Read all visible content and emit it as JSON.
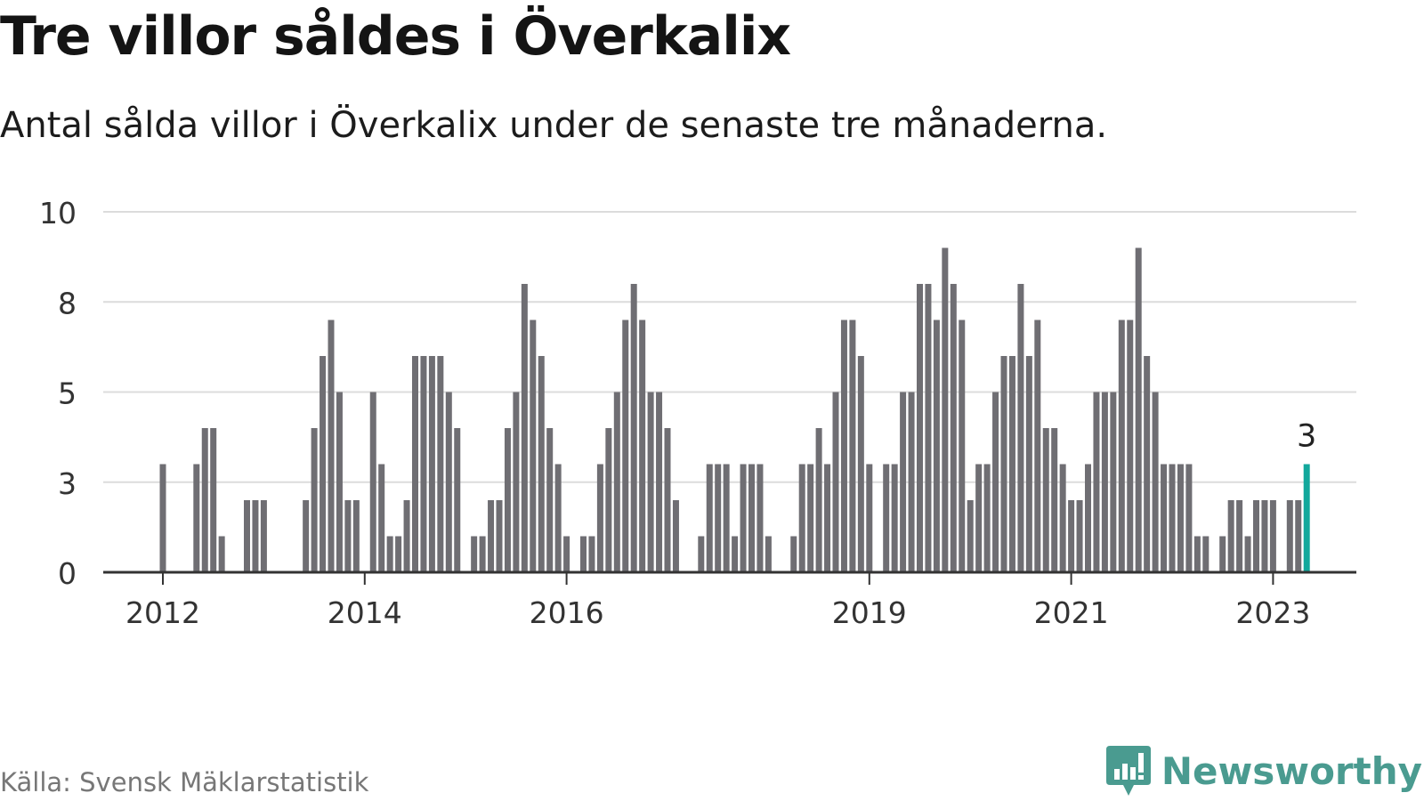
{
  "title": "Tre villor såldes i Överkalix",
  "subtitle": "Antal sålda villor i Överkalix under de senaste tre månaderna.",
  "source": "Källa: Svensk Mäklarstatistik",
  "brand": {
    "name": "Newsworthy",
    "logo_icon": "newsworthy-chart-bubble-icon"
  },
  "colors": {
    "bar": "#6f6e73",
    "highlight": "#12a89c",
    "grid": "#dcdcdc",
    "axis": "#333333",
    "brand": "#4a9b90"
  },
  "chart_data": {
    "type": "bar",
    "title": "Tre villor såldes i Överkalix",
    "xlabel": "",
    "ylabel": "",
    "ylim": [
      0,
      10
    ],
    "yticks": [
      "0",
      "3",
      "5",
      "8",
      "10"
    ],
    "ytick_values": [
      0,
      2.5,
      5,
      7.5,
      10
    ],
    "xtick_labels": [
      "2012",
      "2014",
      "2016",
      "2019",
      "2021",
      "2023"
    ],
    "xtick_indices": [
      0,
      24,
      48,
      84,
      108,
      132
    ],
    "first_period": "2012-01",
    "last_period": "2023-03",
    "grid": true,
    "highlight_label": "3",
    "values": [
      3,
      0,
      0,
      0,
      3,
      4,
      4,
      1,
      0,
      0,
      2,
      2,
      2,
      0,
      0,
      0,
      0,
      2,
      4,
      6,
      7,
      5,
      2,
      2,
      0,
      5,
      3,
      1,
      1,
      2,
      6,
      6,
      6,
      6,
      5,
      4,
      0,
      1,
      1,
      2,
      2,
      4,
      5,
      8,
      7,
      6,
      4,
      3,
      1,
      0,
      1,
      1,
      3,
      4,
      5,
      7,
      8,
      7,
      5,
      5,
      4,
      2,
      0,
      0,
      1,
      3,
      3,
      3,
      1,
      3,
      3,
      3,
      1,
      0,
      0,
      1,
      3,
      3,
      4,
      3,
      5,
      7,
      7,
      6,
      3,
      0,
      3,
      3,
      5,
      5,
      8,
      8,
      7,
      9,
      8,
      7,
      2,
      3,
      3,
      5,
      6,
      6,
      8,
      6,
      7,
      4,
      4,
      3,
      2,
      2,
      3,
      5,
      5,
      5,
      7,
      7,
      9,
      6,
      5,
      3,
      3,
      3,
      3,
      1,
      1,
      0,
      1,
      2,
      2,
      1,
      2,
      2,
      2,
      0,
      2,
      2,
      3
    ],
    "series": [
      {
        "name": "",
        "values": "see values"
      }
    ]
  }
}
